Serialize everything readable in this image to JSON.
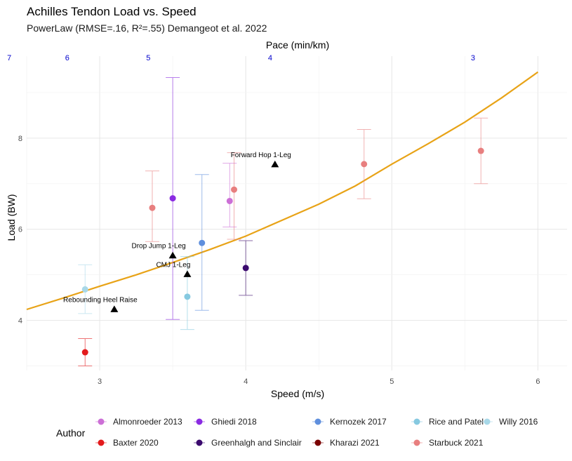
{
  "chart_data": {
    "type": "scatter",
    "title": "Achilles Tendon Load vs. Speed",
    "subtitle": "PowerLaw (RMSE=.16, R²=.55) Demangeot et al. 2022",
    "xlabel": "Speed (m/s)",
    "ylabel": "Load (BW)",
    "x2label": "Pace (min/km)",
    "xlim": [
      2.5,
      6.2
    ],
    "ylim": [
      2.9,
      9.8
    ],
    "x_ticks": [
      3,
      4,
      5,
      6
    ],
    "y_ticks": [
      4,
      6,
      8
    ],
    "x_ticks_labels": [
      "3",
      "4",
      "5",
      "6"
    ],
    "y_ticks_labels": [
      "4",
      "6",
      "8"
    ],
    "x2_ticks": [
      {
        "label": "7",
        "speed": 2.381
      },
      {
        "label": "6",
        "speed": 2.778
      },
      {
        "label": "5",
        "speed": 3.333
      },
      {
        "label": "4",
        "speed": 4.167
      },
      {
        "label": "3",
        "speed": 5.556
      }
    ],
    "grid": true,
    "legend_title": "Author",
    "legend_position": "bottom",
    "legend": [
      {
        "name": "Almonroeder 2013",
        "color": "#cc6fd6"
      },
      {
        "name": "Baxter 2020",
        "color": "#e31a1c"
      },
      {
        "name": "Ghiedi 2018",
        "color": "#8a2be2"
      },
      {
        "name": "Greenhalgh and Sinclair",
        "color": "#3b0a6e"
      },
      {
        "name": "Kernozek 2017",
        "color": "#5f8fdd"
      },
      {
        "name": "Kharazi 2021",
        "color": "#7a0000"
      },
      {
        "name": "Rice and Patel",
        "color": "#86c9e0"
      },
      {
        "name": "Starbuck 2021",
        "color": "#e87f7f"
      },
      {
        "name": "Willy 2016",
        "color": "#a8d8e8"
      }
    ],
    "points": [
      {
        "author": "Willy 2016",
        "x": 2.9,
        "y": 4.68,
        "low": 4.15,
        "high": 5.22
      },
      {
        "author": "Baxter 2020",
        "x": 2.9,
        "y": 3.3,
        "low": 3.0,
        "high": 3.6
      },
      {
        "author": "Starbuck 2021",
        "x": 3.36,
        "y": 6.47,
        "low": 5.73,
        "high": 7.28
      },
      {
        "author": "Ghiedi 2018",
        "x": 3.5,
        "y": 6.68,
        "low": 4.02,
        "high": 9.33
      },
      {
        "author": "Rice and Patel",
        "x": 3.6,
        "y": 4.52,
        "low": 3.8,
        "high": 5.4
      },
      {
        "author": "Kernozek 2017",
        "x": 3.7,
        "y": 5.7,
        "low": 4.22,
        "high": 7.2
      },
      {
        "author": "Almonroeder 2013",
        "x": 3.89,
        "y": 6.62,
        "low": 6.05,
        "high": 7.45
      },
      {
        "author": "Starbuck 2021",
        "x": 3.92,
        "y": 6.87,
        "low": 5.78,
        "high": 7.68
      },
      {
        "author": "Greenhalgh and Sinclair",
        "x": 4.0,
        "y": 5.15,
        "low": 4.55,
        "high": 5.75
      },
      {
        "author": "Starbuck 2021",
        "x": 4.81,
        "y": 7.43,
        "low": 6.67,
        "high": 8.19
      },
      {
        "author": "Starbuck 2021",
        "x": 5.61,
        "y": 7.72,
        "low": 7.0,
        "high": 8.44
      }
    ],
    "annotations": [
      {
        "label": "Forward Hop 1-Leg",
        "x": 4.2,
        "y": 7.43
      },
      {
        "label": "Drop Jump 1-Leg",
        "x": 3.5,
        "y": 5.43
      },
      {
        "label": "CMJ 1-Leg",
        "x": 3.6,
        "y": 5.02
      },
      {
        "label": "Rebounding Heel Raise",
        "x": 3.1,
        "y": 4.25
      }
    ],
    "fit": {
      "type": "power",
      "color": "#e8a317",
      "x": [
        2.5,
        2.75,
        3.0,
        3.25,
        3.5,
        3.75,
        4.0,
        4.25,
        4.5,
        4.75,
        5.0,
        5.25,
        5.5,
        5.75,
        6.0
      ],
      "y": [
        4.24,
        4.49,
        4.75,
        5.0,
        5.27,
        5.55,
        5.85,
        6.2,
        6.55,
        6.95,
        7.43,
        7.88,
        8.35,
        8.88,
        9.45
      ]
    }
  }
}
